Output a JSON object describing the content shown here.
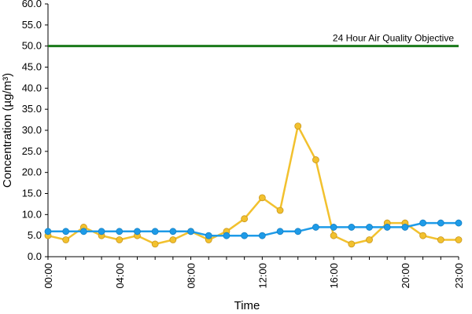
{
  "chart_data": {
    "type": "line",
    "title": "",
    "xlabel": "Time",
    "ylabel": "Concentration (µg/m³)",
    "ylim": [
      0,
      60
    ],
    "y_ticks": [
      "0.0",
      "5.0",
      "10.0",
      "15.0",
      "20.0",
      "25.0",
      "30.0",
      "35.0",
      "40.0",
      "45.0",
      "50.0",
      "55.0",
      "60.0"
    ],
    "x_tick_labels": [
      "00:00",
      "04:00",
      "08:00",
      "12:00",
      "16:00",
      "20:00",
      "23:00"
    ],
    "x_tick_hours": [
      0,
      4,
      8,
      12,
      16,
      20,
      23
    ],
    "hours": [
      0,
      1,
      2,
      3,
      4,
      5,
      6,
      7,
      8,
      9,
      10,
      11,
      12,
      13,
      14,
      15,
      16,
      17,
      18,
      19,
      20,
      21,
      22,
      23
    ],
    "grid": false,
    "legend": "none",
    "series": [
      {
        "color": "#f2c12e",
        "values": [
          5,
          4,
          7,
          5,
          4,
          5,
          3,
          4,
          6,
          4,
          6,
          9,
          14,
          11,
          31,
          23,
          5,
          3,
          4,
          8,
          8,
          5,
          4,
          4
        ]
      },
      {
        "color": "#1e9be8",
        "values": [
          6,
          6,
          6,
          6,
          6,
          6,
          6,
          6,
          6,
          5,
          5,
          5,
          5,
          6,
          6,
          7,
          7,
          7,
          7,
          7,
          7,
          8,
          8,
          8
        ]
      }
    ],
    "reference_line": {
      "value": 50,
      "label": "24 Hour Air Quality Objective",
      "color": "#1a7a1a"
    }
  }
}
